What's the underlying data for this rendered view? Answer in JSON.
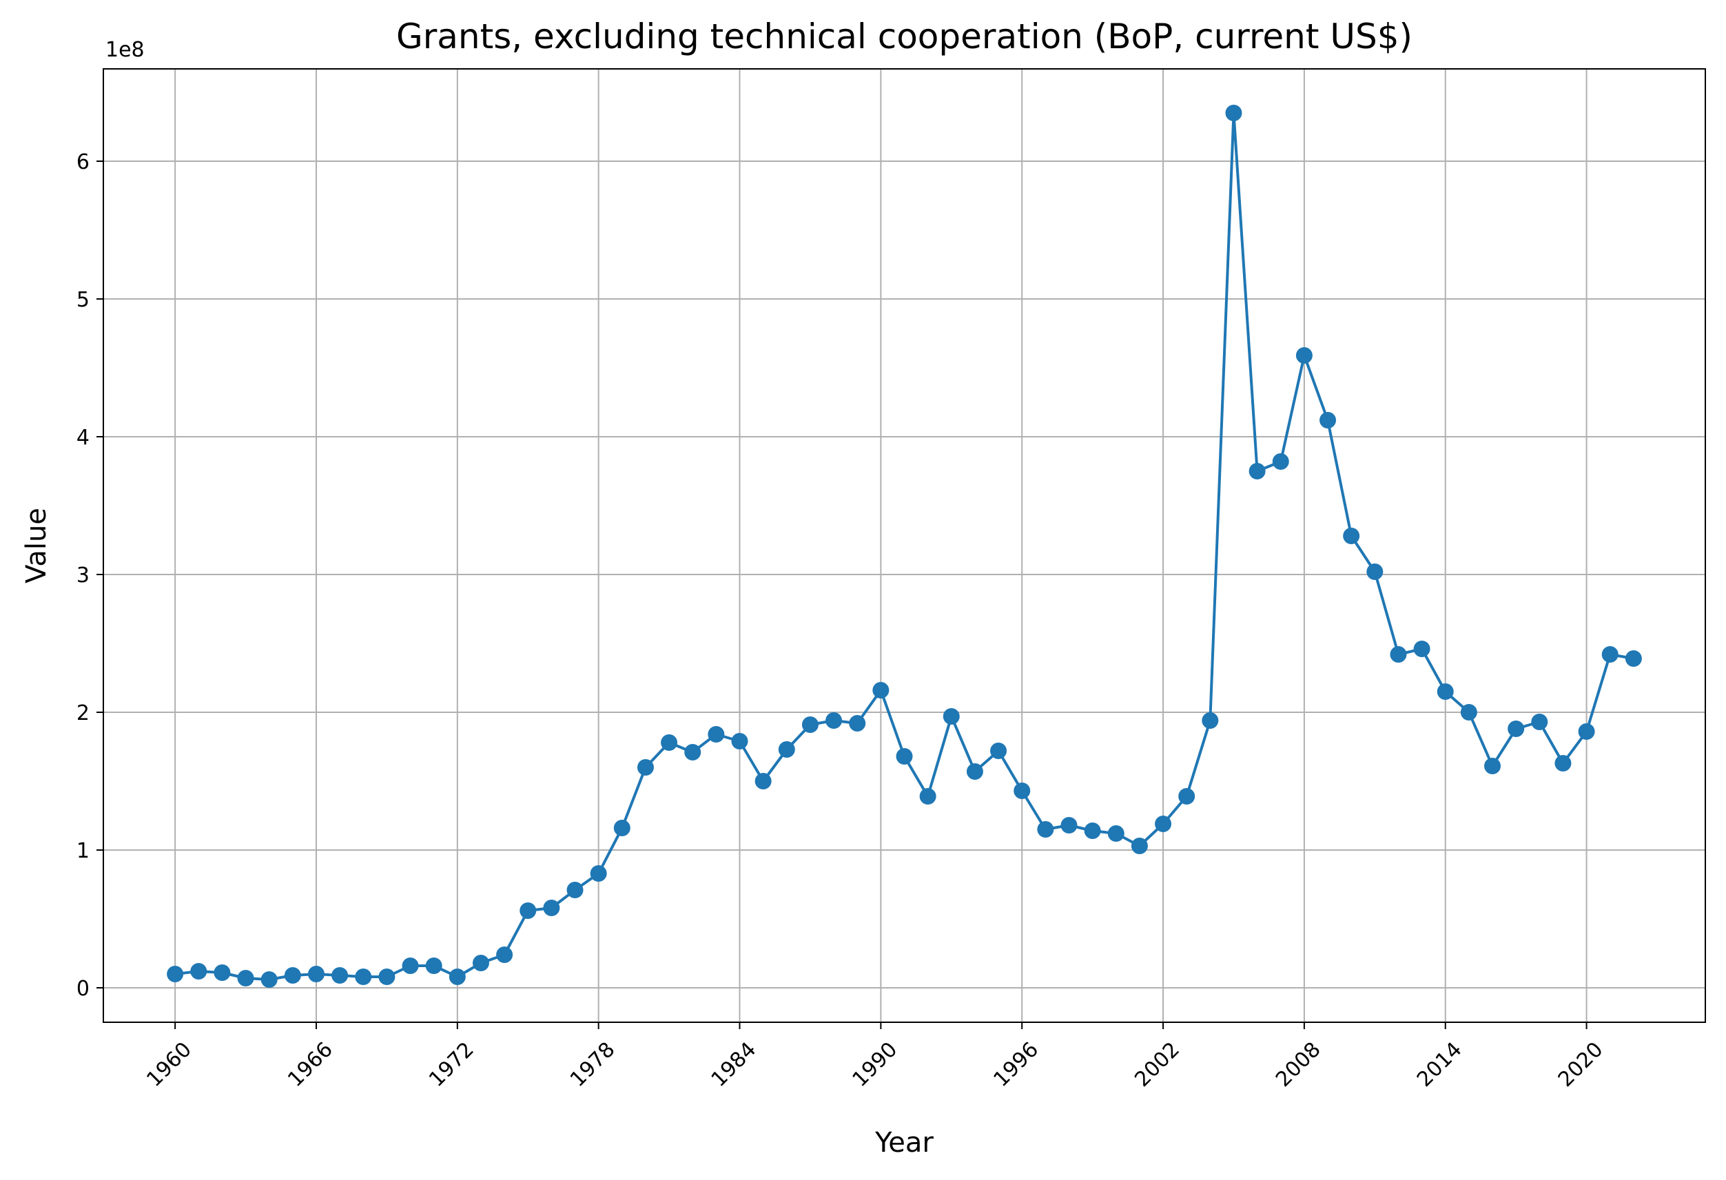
{
  "chart_data": {
    "type": "line",
    "title": "Grants, excluding technical cooperation (BoP, current US$)",
    "xlabel": "Year",
    "ylabel": "Value",
    "y_offset_label": "1e8",
    "y_scale_factor": 100000000,
    "grid": true,
    "legend": "none",
    "xlim": [
      1956.95,
      2025.05
    ],
    "ylim": [
      -0.25,
      6.67
    ],
    "x_ticks": [
      "1960",
      "1966",
      "1972",
      "1978",
      "1984",
      "1990",
      "1996",
      "2002",
      "2008",
      "2014",
      "2020"
    ],
    "y_ticks": [
      "0",
      "1",
      "2",
      "3",
      "4",
      "5",
      "6"
    ],
    "series": [
      {
        "color": "#1f77b4",
        "x": [
          1960,
          1961,
          1962,
          1963,
          1964,
          1965,
          1966,
          1967,
          1968,
          1969,
          1970,
          1971,
          1972,
          1973,
          1974,
          1975,
          1976,
          1977,
          1978,
          1979,
          1980,
          1981,
          1982,
          1983,
          1984,
          1985,
          1986,
          1987,
          1988,
          1989,
          1990,
          1991,
          1992,
          1993,
          1994,
          1995,
          1996,
          1997,
          1998,
          1999,
          2000,
          2001,
          2002,
          2003,
          2004,
          2005,
          2006,
          2007,
          2008,
          2009,
          2010,
          2011,
          2012,
          2013,
          2014,
          2015,
          2016,
          2017,
          2018,
          2019,
          2020,
          2021,
          2022
        ],
        "y": [
          0.1,
          0.12,
          0.11,
          0.07,
          0.06,
          0.09,
          0.1,
          0.09,
          0.08,
          0.08,
          0.16,
          0.16,
          0.08,
          0.18,
          0.24,
          0.56,
          0.58,
          0.71,
          0.83,
          1.16,
          1.6,
          1.78,
          1.71,
          1.84,
          1.79,
          1.5,
          1.73,
          1.91,
          1.94,
          1.92,
          2.16,
          1.68,
          1.39,
          1.97,
          1.57,
          1.72,
          1.43,
          1.15,
          1.18,
          1.14,
          1.12,
          1.03,
          1.19,
          1.39,
          1.94,
          6.35,
          3.75,
          3.82,
          4.59,
          4.12,
          3.28,
          3.02,
          2.42,
          2.46,
          2.15,
          2.0,
          1.61,
          1.88,
          1.93,
          1.63,
          1.86,
          2.42,
          2.39
        ]
      }
    ]
  }
}
